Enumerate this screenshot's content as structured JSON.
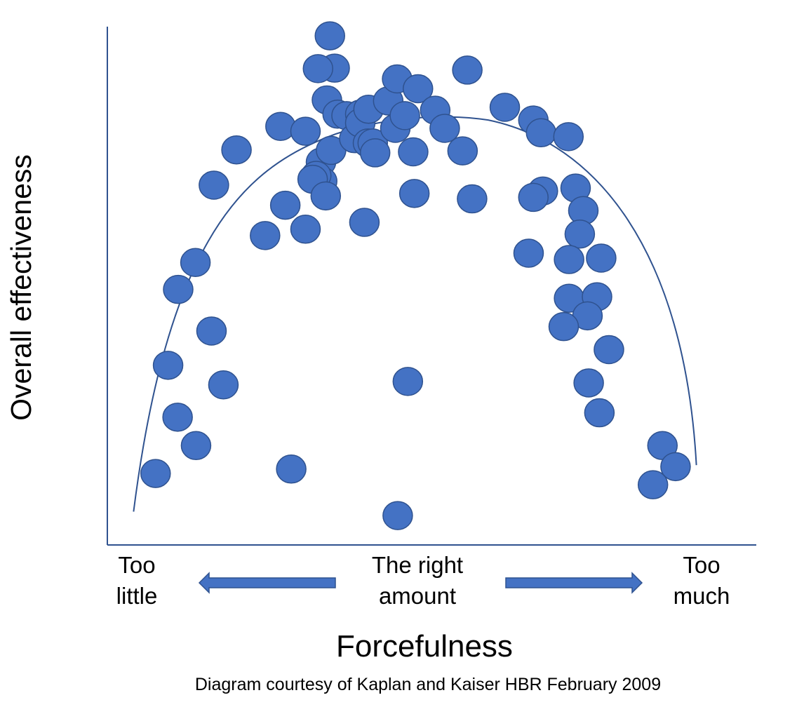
{
  "chart_data": {
    "type": "scatter",
    "xlabel": "Forcefulness",
    "ylabel": "Overall effectiveness",
    "x_tick_labels": {
      "left": [
        "Too",
        "little"
      ],
      "middle": [
        "The right",
        "amount"
      ],
      "right": [
        "Too",
        "much"
      ]
    },
    "caption": "Diagram courtesy of Kaplan and Kaiser HBR February 2009",
    "xlim": [
      0,
      100
    ],
    "ylim": [
      0,
      100
    ],
    "ticks": "none",
    "grid": false,
    "legend": "none",
    "colors": {
      "point": "#4472c4",
      "point_stroke": "#2f528f",
      "axis": "#2f528f",
      "curve": "#2f528f",
      "arrow": "#4472c4"
    },
    "points": [
      [
        4.1,
        9.3
      ],
      [
        6.2,
        31.4
      ],
      [
        7.9,
        46.9
      ],
      [
        7.8,
        20.8
      ],
      [
        10.9,
        15.0
      ],
      [
        10.8,
        52.4
      ],
      [
        13.9,
        68.2
      ],
      [
        17.7,
        75.4
      ],
      [
        13.5,
        38.4
      ],
      [
        15.5,
        27.4
      ],
      [
        26.9,
        10.2
      ],
      [
        22.5,
        57.9
      ],
      [
        25.9,
        64.1
      ],
      [
        29.3,
        59.2
      ],
      [
        25.1,
        80.2
      ],
      [
        29.3,
        79.2
      ],
      [
        31.9,
        72.9
      ],
      [
        32.1,
        69.0
      ],
      [
        31.1,
        70.2
      ],
      [
        33.6,
        75.3
      ],
      [
        30.5,
        69.4
      ],
      [
        32.7,
        66.0
      ],
      [
        34.2,
        92.1
      ],
      [
        33.4,
        98.7
      ],
      [
        32.9,
        85.6
      ],
      [
        31.4,
        92.0
      ],
      [
        34.7,
        82.7
      ],
      [
        36.2,
        82.4
      ],
      [
        37.5,
        77.7
      ],
      [
        38.5,
        82.7
      ],
      [
        38.5,
        80.9
      ],
      [
        39.8,
        76.8
      ],
      [
        39.9,
        83.7
      ],
      [
        40.6,
        76.8
      ],
      [
        41.0,
        74.8
      ],
      [
        39.2,
        60.6
      ],
      [
        43.2,
        85.4
      ],
      [
        44.7,
        89.9
      ],
      [
        44.4,
        79.8
      ],
      [
        46.0,
        82.4
      ],
      [
        47.4,
        75.0
      ],
      [
        48.2,
        87.9
      ],
      [
        47.6,
        66.5
      ],
      [
        51.1,
        83.5
      ],
      [
        52.7,
        79.8
      ],
      [
        55.7,
        75.2
      ],
      [
        56.5,
        91.7
      ],
      [
        57.3,
        65.4
      ],
      [
        62.8,
        84.1
      ],
      [
        67.6,
        81.5
      ],
      [
        68.9,
        78.9
      ],
      [
        69.2,
        67.0
      ],
      [
        67.6,
        65.7
      ],
      [
        66.8,
        54.3
      ],
      [
        74.7,
        67.6
      ],
      [
        73.5,
        78.1
      ],
      [
        76.0,
        63.0
      ],
      [
        75.4,
        58.2
      ],
      [
        73.6,
        53.0
      ],
      [
        73.6,
        45.1
      ],
      [
        79.0,
        53.3
      ],
      [
        78.3,
        45.4
      ],
      [
        76.7,
        41.5
      ],
      [
        72.7,
        39.3
      ],
      [
        80.3,
        34.6
      ],
      [
        76.9,
        27.8
      ],
      [
        78.7,
        21.7
      ],
      [
        89.3,
        15.0
      ],
      [
        91.5,
        10.7
      ],
      [
        87.7,
        7.0
      ],
      [
        44.8,
        0.7
      ],
      [
        46.5,
        28.1
      ]
    ],
    "curve": "semicircular arc from (4, 6) through peak near (50, 82) down to (92, 14)"
  }
}
